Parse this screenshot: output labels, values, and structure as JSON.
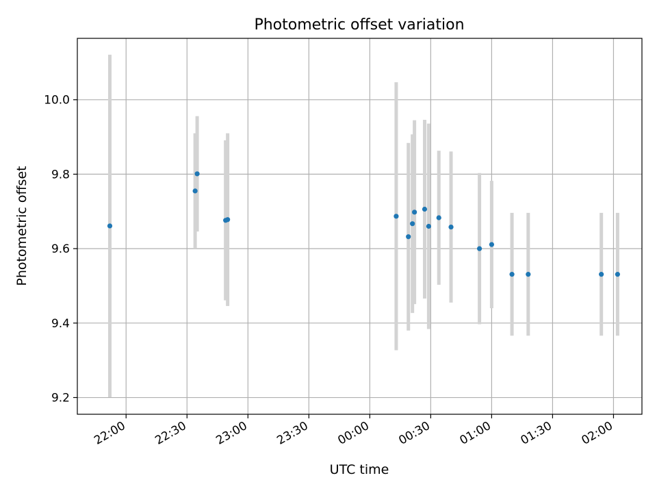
{
  "chart_data": {
    "type": "scatter",
    "title": "Photometric offset variation",
    "xlabel": "UTC time",
    "ylabel": "Photometric offset",
    "x_tick_labels": [
      "22:00",
      "22:30",
      "23:00",
      "23:30",
      "00:00",
      "00:30",
      "01:00",
      "01:30",
      "02:00"
    ],
    "y_ticks": [
      9.2,
      9.4,
      9.6,
      9.8,
      10.0
    ],
    "y_tick_labels": [
      "9.2",
      "9.4",
      "9.6",
      "9.8",
      "10.0"
    ],
    "xlim": [
      "21:36",
      "02:14"
    ],
    "ylim": [
      9.155,
      10.165
    ],
    "grid": true,
    "marker_color": "#1f77b4",
    "errorbar_color": "#d3d3d3",
    "points": [
      {
        "time": "21:52",
        "y": 9.661,
        "err": 0.46
      },
      {
        "time": "22:34",
        "y": 9.755,
        "err": 0.155
      },
      {
        "time": "22:35",
        "y": 9.801,
        "err": 0.155
      },
      {
        "time": "22:49",
        "y": 9.676,
        "err": 0.215
      },
      {
        "time": "22:50",
        "y": 9.678,
        "err": 0.232
      },
      {
        "time": "00:13",
        "y": 9.687,
        "err": 0.36
      },
      {
        "time": "00:19",
        "y": 9.632,
        "err": 0.252
      },
      {
        "time": "00:21",
        "y": 9.667,
        "err": 0.24
      },
      {
        "time": "00:22",
        "y": 9.698,
        "err": 0.247
      },
      {
        "time": "00:27",
        "y": 9.706,
        "err": 0.24
      },
      {
        "time": "00:29",
        "y": 9.66,
        "err": 0.276
      },
      {
        "time": "00:34",
        "y": 9.683,
        "err": 0.18
      },
      {
        "time": "00:40",
        "y": 9.658,
        "err": 0.203
      },
      {
        "time": "00:54",
        "y": 9.6,
        "err": 0.203
      },
      {
        "time": "01:00",
        "y": 9.611,
        "err": 0.171
      },
      {
        "time": "01:10",
        "y": 9.531,
        "err": 0.165
      },
      {
        "time": "01:18",
        "y": 9.531,
        "err": 0.165
      },
      {
        "time": "01:54",
        "y": 9.531,
        "err": 0.165
      },
      {
        "time": "02:02",
        "y": 9.531,
        "err": 0.165
      }
    ]
  }
}
